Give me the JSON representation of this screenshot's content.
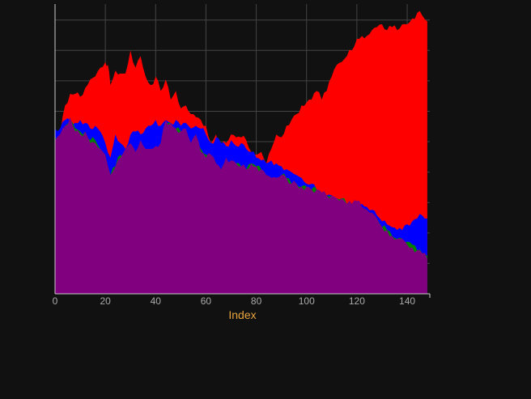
{
  "chart_data": {
    "type": "area",
    "xlabel": "Index",
    "xlim": [
      0,
      149
    ],
    "ylim": [
      0,
      100
    ],
    "x_ticks": [
      0,
      20,
      40,
      60,
      80,
      100,
      120,
      140
    ],
    "grid": true,
    "legend": "none",
    "colors": {
      "background": "#111111",
      "grid": "#444444",
      "xlabel": "#e8a33d",
      "tick_label": "#aaaaaa"
    },
    "series": [
      {
        "color": "#ff0000",
        "anchors": [
          [
            0,
            53
          ],
          [
            2,
            55
          ],
          [
            4,
            65
          ],
          [
            6,
            69
          ],
          [
            8,
            69
          ],
          [
            10,
            68
          ],
          [
            12,
            71
          ],
          [
            14,
            74
          ],
          [
            16,
            75
          ],
          [
            18,
            78
          ],
          [
            20,
            80
          ],
          [
            21,
            79
          ],
          [
            22,
            72
          ],
          [
            24,
            77
          ],
          [
            26,
            76
          ],
          [
            28,
            76
          ],
          [
            30,
            84
          ],
          [
            32,
            78
          ],
          [
            34,
            82
          ],
          [
            36,
            75
          ],
          [
            38,
            72
          ],
          [
            40,
            75
          ],
          [
            42,
            70
          ],
          [
            44,
            74
          ],
          [
            46,
            67
          ],
          [
            48,
            70
          ],
          [
            50,
            64
          ],
          [
            52,
            65
          ],
          [
            54,
            62
          ],
          [
            56,
            61
          ],
          [
            58,
            60
          ],
          [
            60,
            58
          ],
          [
            62,
            52
          ],
          [
            64,
            55
          ],
          [
            66,
            51
          ],
          [
            68,
            52
          ],
          [
            70,
            55
          ],
          [
            72,
            54
          ],
          [
            74,
            54
          ],
          [
            76,
            53
          ],
          [
            78,
            49
          ],
          [
            80,
            48
          ],
          [
            82,
            49
          ],
          [
            84,
            45
          ],
          [
            86,
            50
          ],
          [
            88,
            55
          ],
          [
            90,
            54
          ],
          [
            92,
            58
          ],
          [
            94,
            60
          ],
          [
            96,
            62
          ],
          [
            98,
            65
          ],
          [
            100,
            66
          ],
          [
            102,
            67
          ],
          [
            104,
            70
          ],
          [
            106,
            67
          ],
          [
            108,
            70
          ],
          [
            110,
            75
          ],
          [
            112,
            79
          ],
          [
            114,
            80
          ],
          [
            116,
            82
          ],
          [
            118,
            84
          ],
          [
            120,
            88
          ],
          [
            122,
            89
          ],
          [
            124,
            89
          ],
          [
            126,
            91
          ],
          [
            128,
            92
          ],
          [
            130,
            93
          ],
          [
            132,
            91
          ],
          [
            134,
            92
          ],
          [
            136,
            91
          ],
          [
            138,
            93
          ],
          [
            140,
            93
          ],
          [
            142,
            95
          ],
          [
            144,
            97
          ],
          [
            146,
            96
          ],
          [
            148,
            94
          ]
        ]
      },
      {
        "color": "#0000ff",
        "anchors": [
          [
            0,
            57
          ],
          [
            2,
            57
          ],
          [
            4,
            60
          ],
          [
            6,
            60
          ],
          [
            8,
            59
          ],
          [
            10,
            60
          ],
          [
            12,
            59
          ],
          [
            14,
            57
          ],
          [
            16,
            58
          ],
          [
            18,
            56
          ],
          [
            20,
            52
          ],
          [
            22,
            47
          ],
          [
            24,
            55
          ],
          [
            26,
            52
          ],
          [
            28,
            50
          ],
          [
            30,
            55
          ],
          [
            32,
            56
          ],
          [
            34,
            55
          ],
          [
            36,
            57
          ],
          [
            38,
            58
          ],
          [
            40,
            60
          ],
          [
            42,
            58
          ],
          [
            44,
            60
          ],
          [
            46,
            59
          ],
          [
            48,
            60
          ],
          [
            50,
            58
          ],
          [
            52,
            59
          ],
          [
            54,
            57
          ],
          [
            56,
            58
          ],
          [
            58,
            57
          ],
          [
            60,
            55
          ],
          [
            62,
            52
          ],
          [
            64,
            54
          ],
          [
            66,
            52
          ],
          [
            68,
            51
          ],
          [
            70,
            53
          ],
          [
            72,
            51
          ],
          [
            74,
            52
          ],
          [
            76,
            50
          ],
          [
            78,
            49
          ],
          [
            80,
            47
          ],
          [
            82,
            46
          ],
          [
            84,
            45
          ],
          [
            86,
            46
          ],
          [
            88,
            45
          ],
          [
            90,
            44
          ],
          [
            92,
            43
          ],
          [
            94,
            42
          ],
          [
            96,
            41
          ],
          [
            98,
            40
          ],
          [
            100,
            38
          ],
          [
            102,
            38
          ],
          [
            104,
            36
          ],
          [
            106,
            35
          ],
          [
            108,
            34
          ],
          [
            110,
            34
          ],
          [
            112,
            33
          ],
          [
            114,
            32
          ],
          [
            116,
            31
          ],
          [
            118,
            31
          ],
          [
            120,
            32
          ],
          [
            122,
            31
          ],
          [
            124,
            30
          ],
          [
            126,
            29
          ],
          [
            128,
            27
          ],
          [
            130,
            25
          ],
          [
            132,
            24
          ],
          [
            134,
            23
          ],
          [
            136,
            22
          ],
          [
            138,
            22
          ],
          [
            140,
            24
          ],
          [
            142,
            25
          ],
          [
            144,
            26
          ],
          [
            146,
            27
          ],
          [
            148,
            26
          ]
        ]
      },
      {
        "color": "#008000",
        "anchors": [
          [
            0,
            54
          ],
          [
            2,
            53
          ],
          [
            4,
            58
          ],
          [
            6,
            60
          ],
          [
            8,
            57
          ],
          [
            10,
            56
          ],
          [
            12,
            56
          ],
          [
            14,
            53
          ],
          [
            16,
            53
          ],
          [
            18,
            50
          ],
          [
            20,
            48
          ],
          [
            22,
            41
          ],
          [
            24,
            44
          ],
          [
            26,
            48
          ],
          [
            28,
            48
          ],
          [
            30,
            49
          ],
          [
            32,
            48
          ],
          [
            34,
            51
          ],
          [
            36,
            49
          ],
          [
            38,
            48
          ],
          [
            40,
            47
          ],
          [
            42,
            51
          ],
          [
            44,
            58
          ],
          [
            46,
            59
          ],
          [
            48,
            57
          ],
          [
            50,
            56
          ],
          [
            52,
            56
          ],
          [
            54,
            52
          ],
          [
            56,
            55
          ],
          [
            58,
            50
          ],
          [
            60,
            48
          ],
          [
            62,
            47
          ],
          [
            64,
            45
          ],
          [
            66,
            43
          ],
          [
            68,
            46
          ],
          [
            70,
            46
          ],
          [
            72,
            45
          ],
          [
            74,
            44
          ],
          [
            76,
            43
          ],
          [
            78,
            45
          ],
          [
            80,
            44
          ],
          [
            82,
            43
          ],
          [
            84,
            41
          ],
          [
            86,
            40
          ],
          [
            88,
            40
          ],
          [
            90,
            41
          ],
          [
            92,
            40
          ],
          [
            94,
            38
          ],
          [
            96,
            38
          ],
          [
            98,
            37
          ],
          [
            100,
            37
          ],
          [
            102,
            36
          ],
          [
            104,
            36
          ],
          [
            106,
            35
          ],
          [
            108,
            34
          ],
          [
            110,
            34
          ],
          [
            112,
            33
          ],
          [
            114,
            33
          ],
          [
            116,
            31
          ],
          [
            118,
            31
          ],
          [
            120,
            32
          ],
          [
            122,
            30
          ],
          [
            124,
            29
          ],
          [
            126,
            28
          ],
          [
            128,
            26
          ],
          [
            130,
            23
          ],
          [
            132,
            22
          ],
          [
            134,
            20
          ],
          [
            136,
            19
          ],
          [
            138,
            19
          ],
          [
            140,
            18
          ],
          [
            142,
            17
          ],
          [
            144,
            15
          ],
          [
            146,
            14
          ],
          [
            148,
            13
          ]
        ]
      },
      {
        "color": "#800080",
        "anchors": [
          [
            0,
            53
          ],
          [
            2,
            55
          ],
          [
            4,
            58
          ],
          [
            6,
            61
          ],
          [
            8,
            56
          ],
          [
            10,
            55
          ],
          [
            12,
            56
          ],
          [
            14,
            52
          ],
          [
            16,
            52
          ],
          [
            18,
            50
          ],
          [
            20,
            48
          ],
          [
            22,
            41
          ],
          [
            24,
            44
          ],
          [
            26,
            47
          ],
          [
            28,
            50
          ],
          [
            30,
            52
          ],
          [
            32,
            49
          ],
          [
            34,
            53
          ],
          [
            36,
            50
          ],
          [
            38,
            50
          ],
          [
            40,
            51
          ],
          [
            42,
            52
          ],
          [
            44,
            60
          ],
          [
            46,
            59
          ],
          [
            48,
            57
          ],
          [
            50,
            56
          ],
          [
            52,
            57
          ],
          [
            54,
            52
          ],
          [
            56,
            55
          ],
          [
            58,
            49
          ],
          [
            60,
            47
          ],
          [
            62,
            48
          ],
          [
            64,
            45
          ],
          [
            66,
            43
          ],
          [
            68,
            47
          ],
          [
            70,
            46
          ],
          [
            72,
            45
          ],
          [
            74,
            44
          ],
          [
            76,
            43
          ],
          [
            78,
            45
          ],
          [
            80,
            44
          ],
          [
            82,
            43
          ],
          [
            84,
            41
          ],
          [
            86,
            40
          ],
          [
            88,
            40
          ],
          [
            90,
            41
          ],
          [
            92,
            40
          ],
          [
            94,
            38
          ],
          [
            96,
            38
          ],
          [
            98,
            37
          ],
          [
            100,
            37
          ],
          [
            102,
            36
          ],
          [
            104,
            36
          ],
          [
            106,
            35
          ],
          [
            108,
            34
          ],
          [
            110,
            34
          ],
          [
            112,
            33
          ],
          [
            114,
            33
          ],
          [
            116,
            31
          ],
          [
            118,
            31
          ],
          [
            120,
            32
          ],
          [
            122,
            30
          ],
          [
            124,
            29
          ],
          [
            126,
            28
          ],
          [
            128,
            26
          ],
          [
            130,
            23
          ],
          [
            132,
            22
          ],
          [
            134,
            20
          ],
          [
            136,
            19
          ],
          [
            138,
            19
          ],
          [
            140,
            17
          ],
          [
            142,
            16
          ],
          [
            144,
            15
          ],
          [
            146,
            14
          ],
          [
            148,
            12
          ]
        ]
      }
    ]
  }
}
